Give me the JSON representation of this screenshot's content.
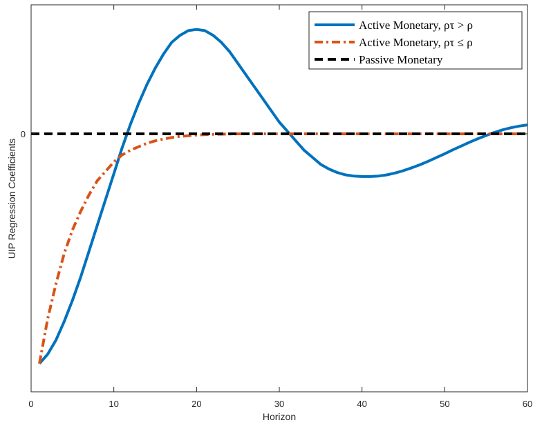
{
  "chart_data": {
    "type": "line",
    "title": "",
    "xlabel": "Horizon",
    "ylabel": "UIP Regression Coefficients",
    "xlim": [
      0,
      60
    ],
    "ylim": [
      -1.1,
      0.55
    ],
    "xticks": [
      0,
      10,
      20,
      30,
      40,
      50,
      60
    ],
    "yticks": [
      0
    ],
    "ytick_labels": [
      "0"
    ],
    "grid": false,
    "legend_position": "top-right",
    "series": [
      {
        "name": "Active Monetary, ρτ > ρ",
        "style": "solid",
        "color": "#0072BD",
        "x": [
          1,
          2,
          3,
          4,
          5,
          6,
          7,
          8,
          9,
          10,
          11,
          12,
          13,
          14,
          15,
          16,
          17,
          18,
          19,
          20,
          21,
          22,
          23,
          24,
          25,
          26,
          27,
          28,
          29,
          30,
          31,
          32,
          33,
          34,
          35,
          36,
          37,
          38,
          39,
          40,
          41,
          42,
          43,
          44,
          45,
          46,
          47,
          48,
          49,
          50,
          51,
          52,
          53,
          54,
          55,
          56,
          57,
          58,
          59,
          60
        ],
        "y": [
          -0.98,
          -0.94,
          -0.88,
          -0.8,
          -0.71,
          -0.61,
          -0.5,
          -0.39,
          -0.28,
          -0.17,
          -0.06,
          0.04,
          0.13,
          0.21,
          0.28,
          0.34,
          0.39,
          0.42,
          0.44,
          0.445,
          0.44,
          0.42,
          0.39,
          0.35,
          0.3,
          0.25,
          0.2,
          0.15,
          0.1,
          0.05,
          0.01,
          -0.03,
          -0.07,
          -0.1,
          -0.13,
          -0.15,
          -0.165,
          -0.175,
          -0.18,
          -0.182,
          -0.182,
          -0.18,
          -0.175,
          -0.167,
          -0.157,
          -0.145,
          -0.132,
          -0.117,
          -0.101,
          -0.085,
          -0.068,
          -0.052,
          -0.036,
          -0.021,
          -0.007,
          0.006,
          0.017,
          0.026,
          0.033,
          0.038
        ]
      },
      {
        "name": "Active Monetary, ρτ ≤ ρ",
        "style": "dashdot",
        "color": "#D95319",
        "x": [
          1,
          2,
          3,
          4,
          5,
          6,
          7,
          8,
          9,
          10,
          11,
          12,
          13,
          14,
          15,
          16,
          17,
          18,
          19,
          20,
          22,
          25,
          30,
          35,
          40,
          45,
          50,
          55,
          60
        ],
        "y": [
          -0.98,
          -0.79,
          -0.64,
          -0.51,
          -0.41,
          -0.33,
          -0.26,
          -0.2,
          -0.16,
          -0.12,
          -0.09,
          -0.07,
          -0.055,
          -0.04,
          -0.03,
          -0.022,
          -0.016,
          -0.011,
          -0.008,
          -0.005,
          -0.002,
          0,
          0,
          0,
          0,
          0,
          0,
          0,
          0
        ]
      },
      {
        "name": "Passive Monetary",
        "style": "dashed",
        "color": "#000000",
        "x": [
          0,
          60
        ],
        "y": [
          0,
          0
        ]
      }
    ]
  }
}
